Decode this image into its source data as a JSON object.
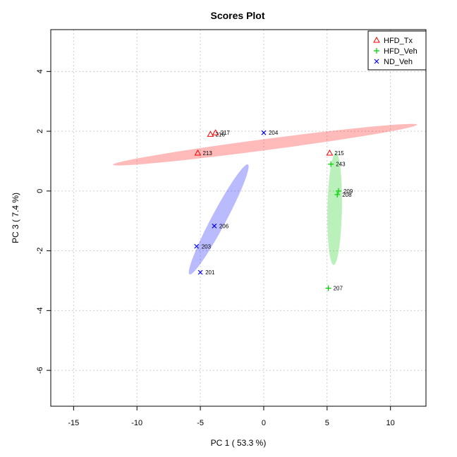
{
  "chart_data": {
    "type": "scatter",
    "title": "Scores Plot",
    "xlabel": "PC 1 ( 53.3 %)",
    "ylabel": "PC 3 ( 7.4 %)",
    "xlim": [
      -16.8,
      12.8
    ],
    "ylim": [
      -7.2,
      5.4
    ],
    "x_ticks": [
      -15,
      -10,
      -5,
      0,
      5,
      10
    ],
    "y_ticks": [
      -6,
      -4,
      -2,
      0,
      2,
      4
    ],
    "grid": true,
    "legend_position": "top-right",
    "series": [
      {
        "name": "HFD_Tx",
        "color": "#ff0000",
        "marker": "triangle",
        "points": [
          {
            "x": -3.8,
            "y": 1.95,
            "label": "217"
          },
          {
            "x": -4.2,
            "y": 1.9,
            "label": "216"
          },
          {
            "x": -5.2,
            "y": 1.27,
            "label": "213"
          },
          {
            "x": 5.2,
            "y": 1.27,
            "label": "215"
          }
        ],
        "ellipse": {
          "cx": 0.1,
          "cy": 1.55,
          "rx": 24.2,
          "ry": 0.88,
          "angle_deg": -7.5
        }
      },
      {
        "name": "HFD_Veh",
        "color": "#00cd00",
        "marker": "plus",
        "points": [
          {
            "x": 5.3,
            "y": 0.9,
            "label": "243"
          },
          {
            "x": 5.9,
            "y": 0.0,
            "label": "209"
          },
          {
            "x": 5.8,
            "y": -0.12,
            "label": "208"
          },
          {
            "x": 5.1,
            "y": -3.25,
            "label": "207"
          }
        ],
        "ellipse": {
          "cx": 5.6,
          "cy": -0.6,
          "rx": 8.84,
          "ry": 1.14,
          "angle_deg": -88.9
        }
      },
      {
        "name": "ND_Veh",
        "color": "#0000ff",
        "marker": "x",
        "points": [
          {
            "x": 0.0,
            "y": 1.95,
            "label": "204"
          },
          {
            "x": -3.9,
            "y": -1.17,
            "label": "206"
          },
          {
            "x": -5.3,
            "y": -1.85,
            "label": "203"
          },
          {
            "x": -5.0,
            "y": -2.72,
            "label": "201"
          }
        ],
        "ellipse": {
          "cx": -3.55,
          "cy": -0.95,
          "rx": 9.82,
          "ry": 1.15,
          "angle_deg": -62
        }
      }
    ]
  }
}
